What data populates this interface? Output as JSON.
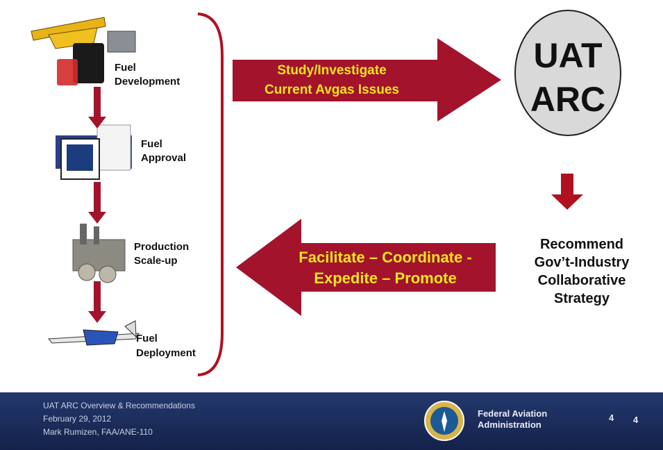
{
  "steps": [
    {
      "label": [
        "Fuel",
        "Development"
      ]
    },
    {
      "label": [
        "Fuel",
        "Approval"
      ]
    },
    {
      "label": [
        "Production",
        "Scale-up"
      ]
    },
    {
      "label": [
        "Fuel",
        "Deployment"
      ]
    }
  ],
  "forward_arrow": {
    "label": [
      "Study/Investigate",
      "Current Avgas Issues"
    ]
  },
  "hub": {
    "label": [
      "UAT",
      "ARC"
    ]
  },
  "recommendation": {
    "label": [
      "Recommend",
      "Gov’t-Industry",
      "Collaborative",
      "Strategy"
    ]
  },
  "return_arrow": {
    "label": [
      "Facilitate – Coordinate -",
      "Expedite – Promote"
    ]
  },
  "footer": {
    "lines": [
      "UAT ARC Overview  & Recommendations",
      "February 29, 2012",
      "Mark Rumizen, FAA/ANE-110"
    ],
    "agency": [
      "Federal Aviation",
      "Administration"
    ],
    "page_numbers": [
      "4",
      "4"
    ]
  }
}
